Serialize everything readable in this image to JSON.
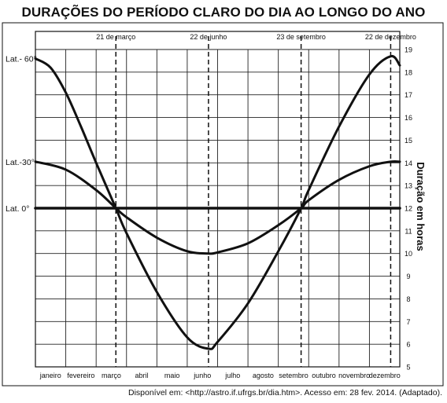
{
  "chart_data": {
    "type": "line",
    "title": "DURAÇÕES DO PERÍODO CLARO DO DIA AO LONGO DO ANO",
    "ylabel": "Duração em horas",
    "ylim": [
      5,
      19
    ],
    "yticks": [
      5,
      6,
      7,
      8,
      9,
      10,
      11,
      12,
      13,
      14,
      15,
      16,
      17,
      18,
      19
    ],
    "categories": [
      "janeiro",
      "fevereiro",
      "março",
      "abril",
      "maio",
      "junho",
      "julho",
      "agosto",
      "setembro",
      "outubro",
      "novembro",
      "dezembro"
    ],
    "grid": true,
    "markers": [
      {
        "label": "21 de março",
        "x": 2.65
      },
      {
        "label": "22 de junho",
        "x": 5.7
      },
      {
        "label": "23 de setembro",
        "x": 8.75
      },
      {
        "label": "22 de dezembro",
        "x": 11.7
      }
    ],
    "series": [
      {
        "name": "Lat.- 60°",
        "x": [
          0,
          0.5,
          1,
          1.5,
          2,
          2.65,
          3,
          4,
          5,
          5.7,
          6,
          7,
          8,
          8.75,
          9,
          10,
          11,
          11.7,
          12
        ],
        "values": [
          18.6,
          18.2,
          17.1,
          15.6,
          14.0,
          12.0,
          10.9,
          8.3,
          6.3,
          5.8,
          6.1,
          7.8,
          10.1,
          12.0,
          12.8,
          15.6,
          17.9,
          18.7,
          18.3
        ]
      },
      {
        "name": "Lat.-30°",
        "x": [
          0,
          1,
          2,
          2.65,
          3,
          4,
          5,
          5.7,
          6,
          7,
          8,
          8.75,
          9,
          10,
          11,
          11.7,
          12
        ],
        "values": [
          14.05,
          13.7,
          12.8,
          12.0,
          11.6,
          10.7,
          10.1,
          10.0,
          10.05,
          10.45,
          11.25,
          12.0,
          12.35,
          13.25,
          13.85,
          14.05,
          14.05
        ]
      },
      {
        "name": "Lat. 0°",
        "x": [
          0,
          12
        ],
        "values": [
          12,
          12
        ]
      }
    ]
  },
  "source": "Disponível em: <http://astro.if.ufrgs.br/dia.htm>. Acesso em: 28 fev. 2014. (Adaptado)."
}
